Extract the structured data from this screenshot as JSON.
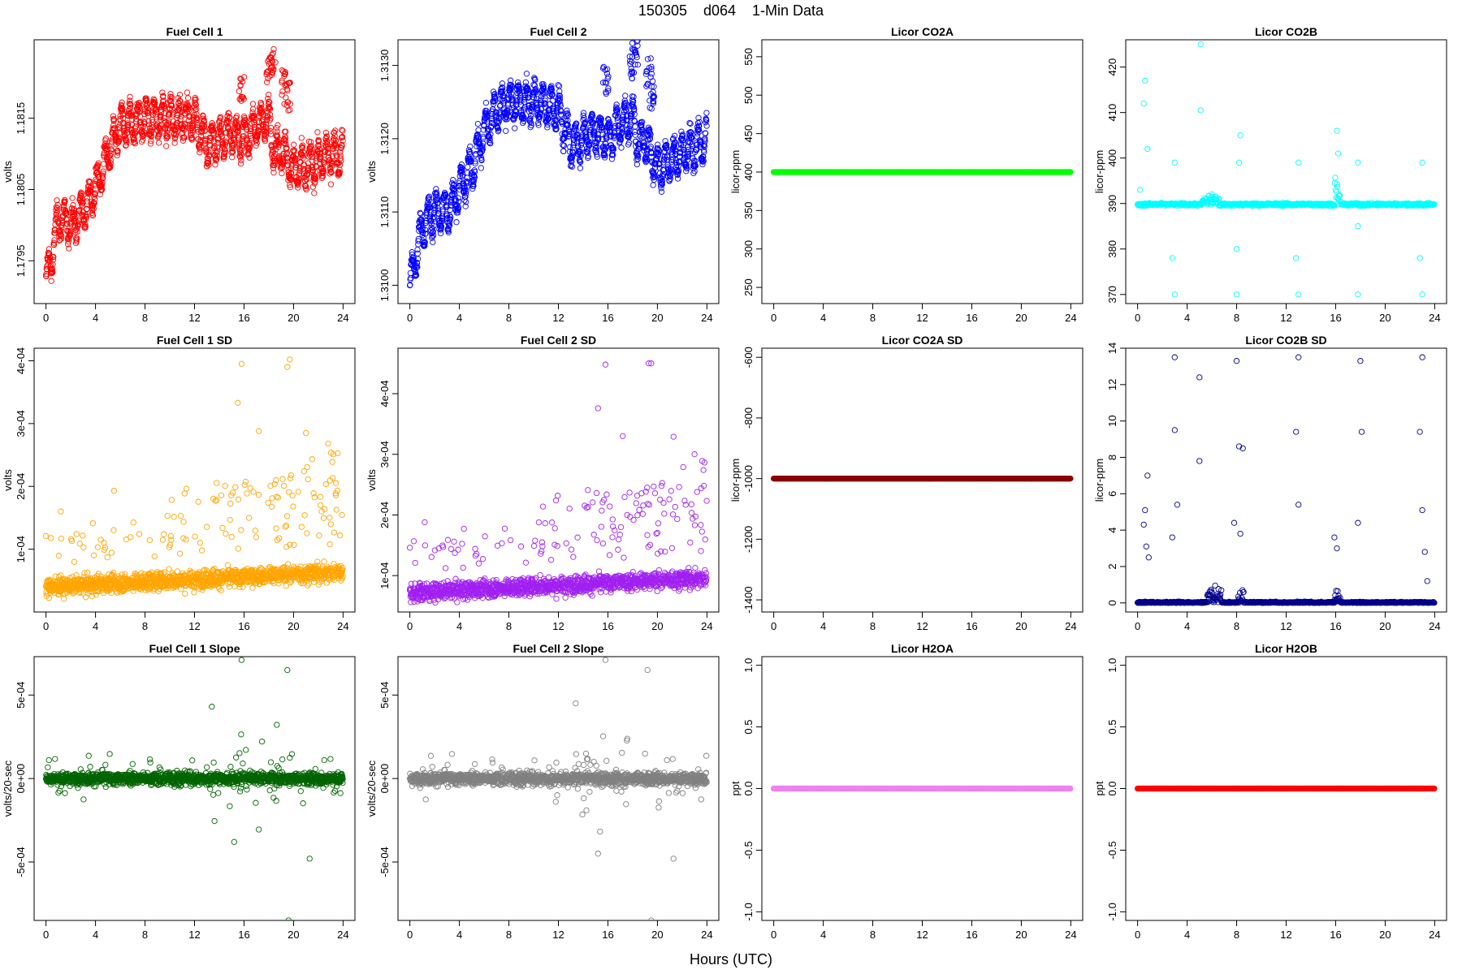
{
  "page_title": "150305    d064    1-Min Data",
  "x_axis_label": "Hours (UTC)",
  "chart_data": [
    {
      "type": "scatter",
      "title": "Fuel Cell 1",
      "ylabel": "volts",
      "color": "#ff0000",
      "pattern": "fc1",
      "x_range": [
        0,
        24
      ],
      "ylim": [
        1.1789,
        1.1826
      ],
      "x_ticks": [
        "0",
        "4",
        "8",
        "12",
        "16",
        "20",
        "24"
      ],
      "y_ticks": [
        "1.1795",
        "1.1805",
        "1.1815"
      ],
      "trend_x": [
        0,
        0.5,
        1,
        2,
        3,
        4,
        5,
        6,
        7,
        8,
        10,
        12,
        13,
        14,
        15,
        16,
        17,
        18,
        18.5,
        19,
        19.5,
        20,
        21,
        22,
        23,
        24
      ],
      "trend_y": [
        1.1792,
        1.1796,
        1.1801,
        1.18,
        1.1802,
        1.1805,
        1.181,
        1.1814,
        1.1814,
        1.1815,
        1.1815,
        1.1815,
        1.1811,
        1.1812,
        1.1813,
        1.1812,
        1.1814,
        1.1815,
        1.181,
        1.1811,
        1.1809,
        1.1808,
        1.1808,
        1.1809,
        1.181,
        1.181
      ]
    },
    {
      "type": "scatter",
      "title": "Fuel Cell 2",
      "ylabel": "volts",
      "color": "#0000ff",
      "pattern": "fc2",
      "x_range": [
        0,
        24
      ],
      "ylim": [
        1.30975,
        1.31335
      ],
      "x_ticks": [
        "0",
        "4",
        "8",
        "12",
        "16",
        "20",
        "24"
      ],
      "y_ticks": [
        "1.3100",
        "1.3110",
        "1.3120",
        "1.3130"
      ],
      "trend_x": [
        0,
        0.5,
        1,
        2,
        3,
        4,
        5,
        6,
        7,
        8,
        10,
        12,
        13,
        14,
        15,
        16,
        17,
        18,
        18.5,
        19,
        19.5,
        20,
        21,
        22,
        23,
        24
      ],
      "trend_y": [
        1.31,
        1.3104,
        1.3108,
        1.311,
        1.311,
        1.3113,
        1.3116,
        1.3121,
        1.3124,
        1.3125,
        1.3125,
        1.3124,
        1.3119,
        1.312,
        1.3121,
        1.312,
        1.3122,
        1.3123,
        1.3119,
        1.312,
        1.3118,
        1.3116,
        1.3117,
        1.3118,
        1.3119,
        1.312
      ]
    },
    {
      "type": "scatter",
      "title": "Licor CO2A",
      "ylabel": "licor-ppm",
      "color": "#00ff00",
      "pattern": "flat",
      "value": 400,
      "x_range": [
        0,
        24
      ],
      "ylim": [
        229,
        572
      ],
      "x_ticks": [
        "0",
        "4",
        "8",
        "12",
        "16",
        "20",
        "24"
      ],
      "y_ticks": [
        "250",
        "300",
        "350",
        "400",
        "450",
        "500",
        "550"
      ]
    },
    {
      "type": "scatter",
      "title": "Licor CO2B",
      "ylabel": "licor-ppm",
      "color": "#00ffff",
      "pattern": "co2b",
      "baseline": 389.8,
      "x_range": [
        0,
        24
      ],
      "ylim": [
        368,
        426
      ],
      "x_ticks": [
        "0",
        "4",
        "8",
        "12",
        "16",
        "20",
        "24"
      ],
      "y_ticks": [
        "370",
        "380",
        "390",
        "400",
        "410",
        "420"
      ],
      "spikes": [
        [
          0.2,
          393
        ],
        [
          0.5,
          412
        ],
        [
          0.6,
          417
        ],
        [
          0.8,
          402
        ],
        [
          2.8,
          378
        ],
        [
          3,
          399
        ],
        [
          3,
          370
        ],
        [
          5.1,
          425
        ],
        [
          5.1,
          410.5
        ],
        [
          6,
          392
        ],
        [
          8.2,
          399
        ],
        [
          8.3,
          405
        ],
        [
          8,
          380
        ],
        [
          8,
          370
        ],
        [
          12.8,
          378
        ],
        [
          13,
          399
        ],
        [
          13,
          370
        ],
        [
          16.1,
          406
        ],
        [
          16.2,
          401
        ],
        [
          17.8,
          385
        ],
        [
          17.8,
          399
        ],
        [
          17.8,
          370
        ],
        [
          22.8,
          378
        ],
        [
          23,
          399
        ],
        [
          23,
          370
        ]
      ]
    },
    {
      "type": "scatter",
      "title": "Fuel Cell 1 SD",
      "ylabel": "volts",
      "color": "#ffa500",
      "pattern": "sd1",
      "x_range": [
        0,
        24
      ],
      "ylim": [
        0.0,
        0.00042
      ],
      "x_ticks": [
        "0",
        "4",
        "8",
        "12",
        "16",
        "20",
        "24"
      ],
      "y_ticks": [
        "1e-04",
        "2e-04",
        "3e-04",
        "4e-04"
      ],
      "outliers": [
        [
          0,
          0.000121
        ],
        [
          1.2,
          0.00016
        ],
        [
          5.5,
          0.000193
        ],
        [
          15.5,
          0.000333
        ],
        [
          15.8,
          0.000395
        ],
        [
          19.5,
          0.00039
        ],
        [
          19.7,
          0.000402
        ],
        [
          21,
          0.000285
        ],
        [
          22.8,
          0.000268
        ],
        [
          17.2,
          0.000288
        ]
      ]
    },
    {
      "type": "scatter",
      "title": "Fuel Cell 2 SD",
      "ylabel": "volts",
      "color": "#a020f0",
      "pattern": "sd2",
      "x_range": [
        0,
        24
      ],
      "ylim": [
        4e-05,
        0.000475
      ],
      "x_ticks": [
        "0",
        "4",
        "8",
        "12",
        "16",
        "20",
        "24"
      ],
      "y_ticks": [
        "1e-04",
        "2e-04",
        "3e-04",
        "4e-04"
      ],
      "outliers": [
        [
          0,
          0.000146
        ],
        [
          1.2,
          0.000188
        ],
        [
          15.2,
          0.000376
        ],
        [
          15.8,
          0.000448
        ],
        [
          19.3,
          0.00045
        ],
        [
          19.5,
          0.00045
        ],
        [
          21.3,
          0.000329
        ],
        [
          23,
          0.0003
        ],
        [
          17.2,
          0.00033
        ]
      ]
    },
    {
      "type": "scatter",
      "title": "Licor CO2A SD",
      "ylabel": "licor-ppm",
      "color": "#8b0000",
      "pattern": "flat",
      "value": -1000,
      "x_range": [
        0,
        24
      ],
      "ylim": [
        -1440,
        -570
      ],
      "x_ticks": [
        "0",
        "4",
        "8",
        "12",
        "16",
        "20",
        "24"
      ],
      "y_ticks": [
        "-1400",
        "-1200",
        "-1000",
        "-800",
        "-600"
      ]
    },
    {
      "type": "scatter",
      "title": "Licor CO2B SD",
      "ylabel": "licor-ppm",
      "color": "#00008b",
      "pattern": "sdco2b",
      "x_range": [
        0,
        24
      ],
      "ylim": [
        -0.5,
        14
      ],
      "x_ticks": [
        "0",
        "4",
        "8",
        "12",
        "16",
        "20",
        "24"
      ],
      "y_ticks": [
        "0",
        "2",
        "4",
        "6",
        "8",
        "10",
        "12",
        "14"
      ],
      "spikes": [
        [
          0.5,
          4.3
        ],
        [
          0.6,
          5.1
        ],
        [
          0.7,
          3.1
        ],
        [
          0.8,
          7.0
        ],
        [
          0.9,
          2.5
        ],
        [
          2.8,
          3.6
        ],
        [
          3,
          9.5
        ],
        [
          3,
          13.5
        ],
        [
          3.2,
          5.4
        ],
        [
          5,
          7.8
        ],
        [
          5,
          12.4
        ],
        [
          7.8,
          4.4
        ],
        [
          8,
          13.3
        ],
        [
          8.2,
          8.6
        ],
        [
          8.3,
          3.8
        ],
        [
          8.5,
          8.5
        ],
        [
          12.8,
          9.4
        ],
        [
          13,
          13.5
        ],
        [
          13,
          5.4
        ],
        [
          15.9,
          3.6
        ],
        [
          16.1,
          3.0
        ],
        [
          17.8,
          4.4
        ],
        [
          18,
          13.3
        ],
        [
          18.1,
          9.4
        ],
        [
          22.8,
          9.4
        ],
        [
          23,
          13.5
        ],
        [
          23,
          5.1
        ],
        [
          23.2,
          2.8
        ],
        [
          23.4,
          1.2
        ]
      ]
    },
    {
      "type": "scatter",
      "title": "Fuel Cell 1 Slope",
      "ylabel": "volts/20-sec",
      "color": "#006400",
      "pattern": "slope1",
      "x_range": [
        0,
        24
      ],
      "ylim": [
        -0.00085,
        0.00073
      ],
      "x_ticks": [
        "0",
        "4",
        "8",
        "12",
        "16",
        "20",
        "24"
      ],
      "y_ticks": [
        "-5e-04",
        "0e+00",
        "5e-04"
      ],
      "outliers": [
        [
          15.8,
          0.00071
        ],
        [
          19.5,
          0.00065
        ],
        [
          19.6,
          -0.00085
        ],
        [
          21.3,
          -0.00048
        ],
        [
          15.2,
          -0.00038
        ],
        [
          13.4,
          0.00043
        ]
      ]
    },
    {
      "type": "scatter",
      "title": "Fuel Cell 2 Slope",
      "ylabel": "volts/20-sec",
      "color": "#808080",
      "pattern": "slope2",
      "x_range": [
        0,
        24
      ],
      "ylim": [
        -0.00085,
        0.00073
      ],
      "x_ticks": [
        "0",
        "4",
        "8",
        "12",
        "16",
        "20",
        "24"
      ],
      "y_ticks": [
        "-5e-04",
        "0e+00",
        "5e-04"
      ],
      "outliers": [
        [
          15.8,
          0.00071
        ],
        [
          19.2,
          0.00065
        ],
        [
          19.5,
          -0.00085
        ],
        [
          21.3,
          -0.00048
        ],
        [
          15.2,
          -0.00045
        ],
        [
          13.4,
          0.00045
        ]
      ]
    },
    {
      "type": "scatter",
      "title": "Licor H2OA",
      "ylabel": "ppt",
      "color": "#ee82ee",
      "pattern": "flat",
      "value": 0,
      "x_range": [
        0,
        24
      ],
      "ylim": [
        -1.07,
        1.07
      ],
      "x_ticks": [
        "0",
        "4",
        "8",
        "12",
        "16",
        "20",
        "24"
      ],
      "y_ticks": [
        "-1.0",
        "-0.5",
        "0.0",
        "0.5",
        "1.0"
      ]
    },
    {
      "type": "scatter",
      "title": "Licor H2OB",
      "ylabel": "ppt",
      "color": "#ff0000",
      "pattern": "flat",
      "value": 0,
      "x_range": [
        0,
        24
      ],
      "ylim": [
        -1.07,
        1.07
      ],
      "x_ticks": [
        "0",
        "4",
        "8",
        "12",
        "16",
        "20",
        "24"
      ],
      "y_ticks": [
        "-1.0",
        "-0.5",
        "0.0",
        "0.5",
        "1.0"
      ]
    }
  ]
}
